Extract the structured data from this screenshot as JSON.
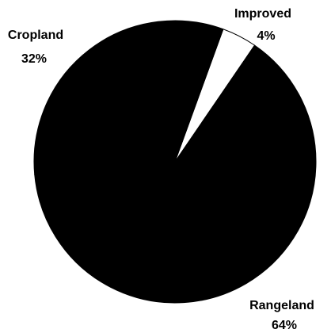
{
  "chart_data": {
    "type": "pie",
    "start_angle_deg": 20,
    "slices": [
      {
        "label": "Improved",
        "value": 4,
        "value_label": "4%",
        "color": "#ffffff"
      },
      {
        "label": "Rangeland",
        "value": 64,
        "value_label": "64%",
        "color": "#000000"
      },
      {
        "label": "Cropland",
        "value": 32,
        "value_label": "32%",
        "color": "#000000"
      }
    ]
  }
}
